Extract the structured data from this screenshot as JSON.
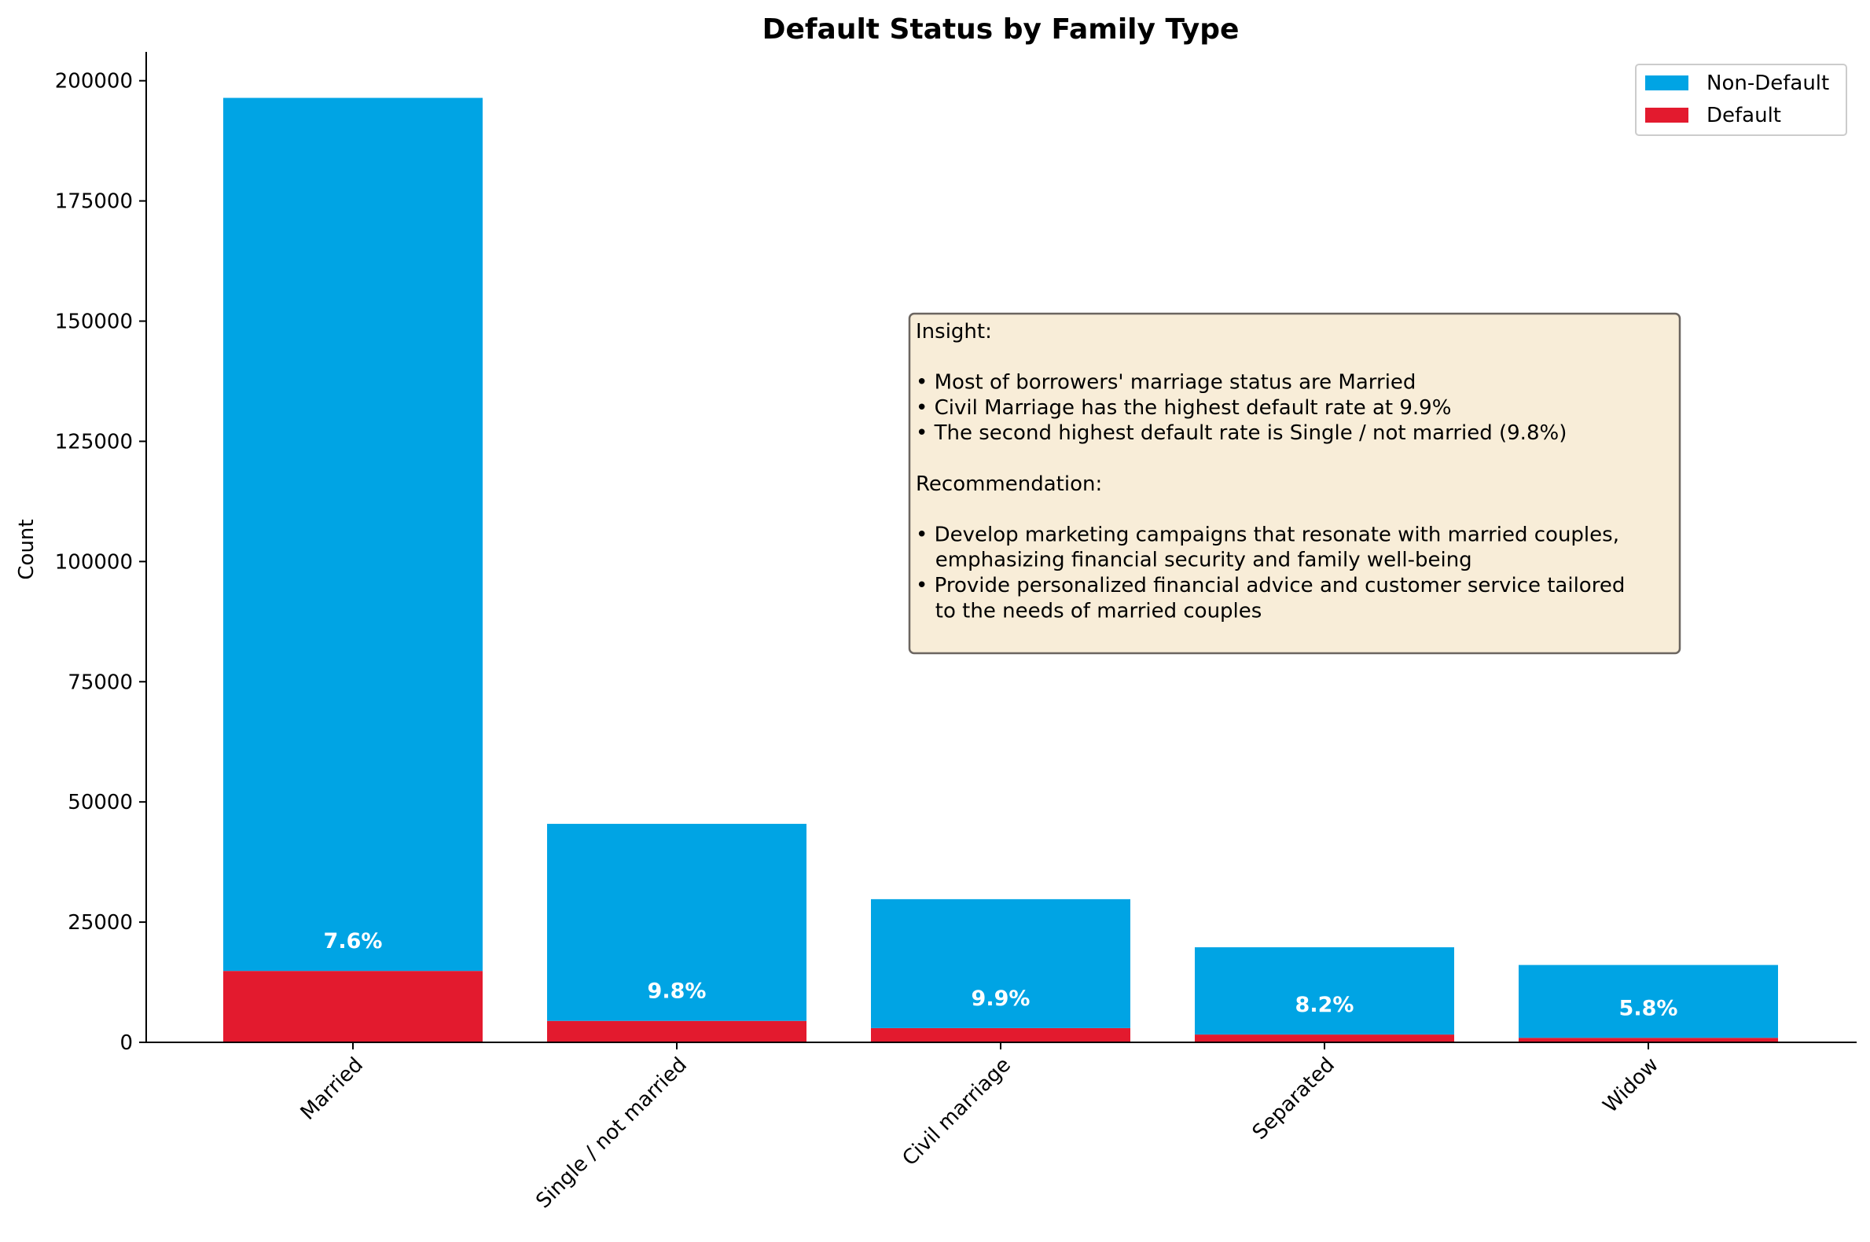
{
  "chart_data": {
    "type": "bar",
    "stacked": true,
    "title": "Default Status by Family Type",
    "xlabel": "",
    "ylabel": "Count",
    "ylim": [
      0,
      206000
    ],
    "yticks": [
      0,
      25000,
      50000,
      75000,
      100000,
      125000,
      150000,
      175000,
      200000
    ],
    "categories": [
      "Married",
      "Single / not married",
      "Civil marriage",
      "Separated",
      "Widow"
    ],
    "series": [
      {
        "name": "Default",
        "color": "#e31a2e",
        "values": [
          14850,
          4457,
          2961,
          1620,
          937
        ]
      },
      {
        "name": "Non-Default",
        "color": "#00a4e4",
        "values": [
          181583,
          40987,
          26814,
          18150,
          15151
        ]
      }
    ],
    "data_labels": [
      "7.6%",
      "9.8%",
      "9.9%",
      "8.2%",
      "5.8%"
    ],
    "legend": {
      "position": "top-right"
    },
    "grid": false,
    "annotation": {
      "lines": [
        "Insight:",
        "",
        "• Most of borrowers' marriage status are Married",
        "• Civil Marriage has the highest default rate at 9.9%",
        "• The second highest default rate is Single / not married (9.8%)",
        "",
        "Recommendation:",
        "",
        "• Develop marketing campaigns that resonate with married couples,",
        "   emphasizing financial security and family well-being",
        "• Provide personalized financial advice and customer service tailored",
        "   to the needs of married couples"
      ],
      "background": "#f8edd8"
    }
  }
}
